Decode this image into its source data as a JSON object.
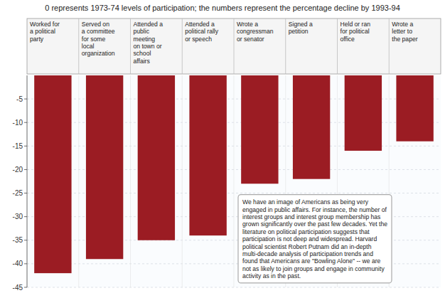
{
  "chart_data": {
    "type": "bar",
    "title": "0 represents 1973-74 levels of participation; the numbers represent the percentage decline by 1993-94",
    "categories": [
      "Worked for\na political\nparty",
      "Served on\na committee\nfor some\nlocal\norganization",
      "Attended a\npublic\nmeeting\non town or\nschool\naffairs",
      "Attended a\npolitical rally\nor speech",
      "Wrote a\ncongressman\nor senator",
      "Signed a\npetition",
      "Held or ran\nfor political\noffice",
      "Wrote a\nletter to\nthe paper"
    ],
    "values": [
      -42,
      -39,
      -35,
      -34,
      -23,
      -22,
      -16,
      -14
    ],
    "color": "#9b1c23",
    "ylim": [
      -45,
      0
    ],
    "yticks": [
      -5,
      -10,
      -15,
      -20,
      -25,
      -30,
      -35,
      -40,
      -45
    ],
    "grid": true,
    "annotation": "We have an image of Americans as being very\nengaged in public affairs. For instance, the number of\ninterest groups and interest group membership has\ngrown significantly over the past few decades. Yet the\nliterature on political participation suggests that\nparticipation is not deep and widespread. Harvard\npolitical scientist Robert Putnam did an in-depth\nmulti-decade analysis of participation trends and\nfound that Americans are \"Bowling Alone\" -- we are\nnot as likely to join groups and engage in community\nactivity as in the past."
  }
}
